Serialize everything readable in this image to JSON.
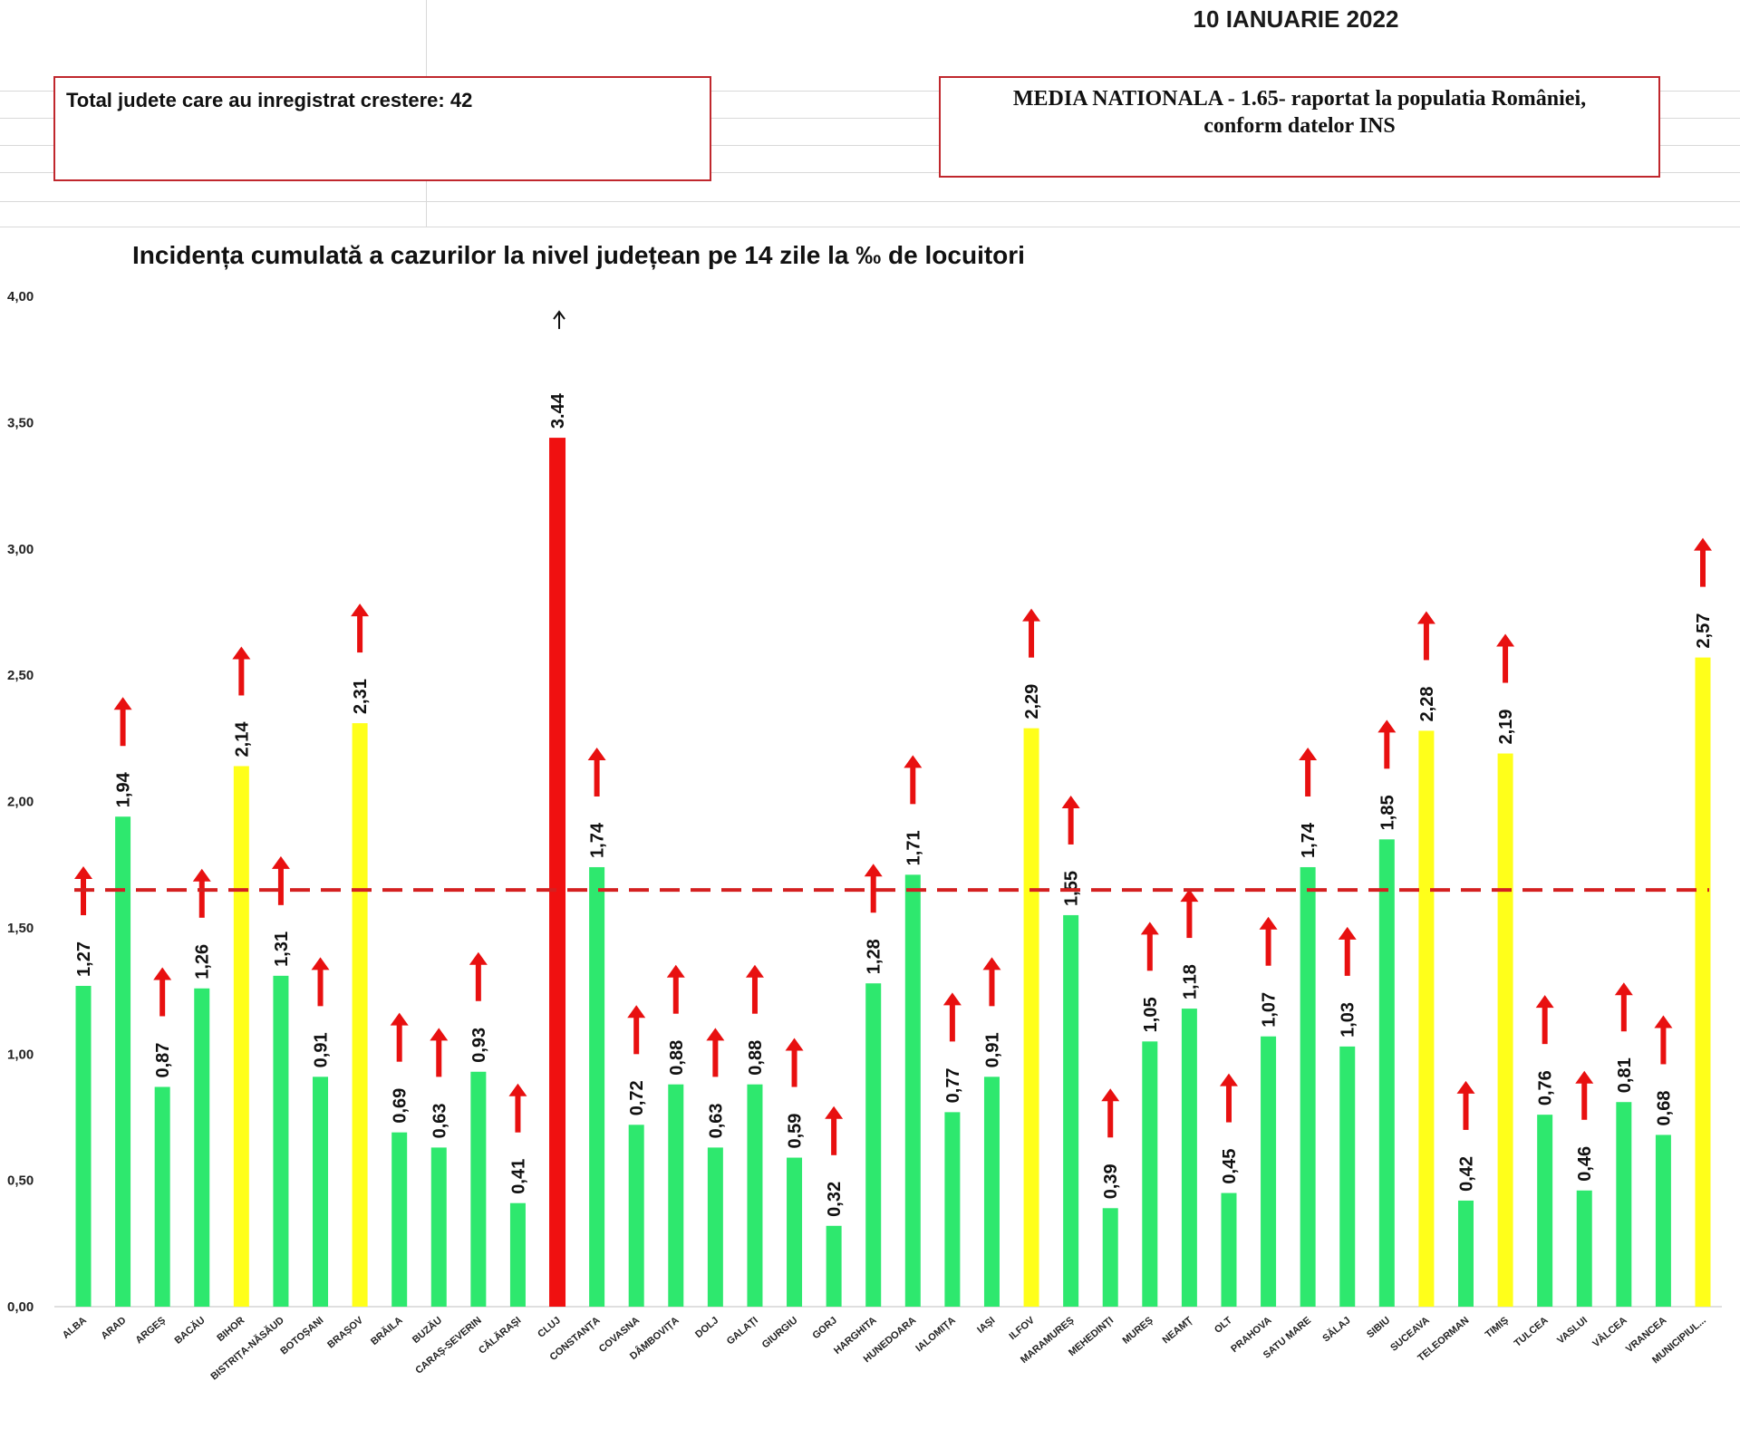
{
  "header": {
    "date": "10 IANUARIE 2022",
    "box_left_text": "Total judete care au inregistrat crestere: 42",
    "box_right_line1": "MEDIA NATIONALA - 1.65-  raportat la populatia României,",
    "box_right_line2": "conform datelor INS"
  },
  "chart_data": {
    "type": "bar",
    "title": "Incidența cumulată a cazurilor la nivel județean pe 14 zile la ‰ de locuitori",
    "xlabel": "",
    "ylabel": "",
    "ylim": [
      0,
      4
    ],
    "yticks": [
      "0,00",
      "0,50",
      "1,00",
      "1,50",
      "2,00",
      "2,50",
      "3,00",
      "3,50",
      "4,00"
    ],
    "reference_line": {
      "value": 1.65,
      "style": "dashed",
      "color": "#d42020"
    },
    "trend_arrows": "up (increase) above every bar",
    "colors": {
      "green": "#2ee86e",
      "yellow": "#ffff1a",
      "red": "#f01010",
      "arrow": "#e81010"
    },
    "categories": [
      "ALBA",
      "ARAD",
      "ARGEȘ",
      "BACĂU",
      "BIHOR",
      "BISTRIȚA-NĂSĂUD",
      "BOTOȘANI",
      "BRAȘOV",
      "BRĂILA",
      "BUZĂU",
      "CARAȘ-SEVERIN",
      "CĂLĂRAȘI",
      "CLUJ",
      "CONSTANȚA",
      "COVASNA",
      "DÂMBOVIȚA",
      "DOLJ",
      "GALAȚI",
      "GIURGIU",
      "GORJ",
      "HARGHITA",
      "HUNEDOARA",
      "IALOMIȚA",
      "IAȘI",
      "ILFOV",
      "MARAMUREȘ",
      "MEHEDINȚI",
      "MUREȘ",
      "NEAMȚ",
      "OLT",
      "PRAHOVA",
      "SATU MARE",
      "SĂLAJ",
      "SIBIU",
      "SUCEAVA",
      "TELEORMAN",
      "TIMIȘ",
      "TULCEA",
      "VASLUI",
      "VÂLCEA",
      "VRANCEA",
      "MUNICIPIUL..."
    ],
    "values": [
      1.27,
      1.94,
      0.87,
      1.26,
      2.14,
      1.31,
      0.91,
      2.31,
      0.69,
      0.63,
      0.93,
      0.41,
      3.44,
      1.74,
      0.72,
      0.88,
      0.63,
      0.88,
      0.59,
      0.32,
      1.28,
      1.71,
      0.77,
      0.91,
      2.29,
      1.55,
      0.39,
      1.05,
      1.18,
      0.45,
      1.07,
      1.74,
      1.03,
      1.85,
      2.28,
      0.42,
      2.19,
      0.76,
      0.46,
      0.81,
      0.68,
      2.57
    ],
    "labels": [
      "1,27",
      "1,94",
      "0,87",
      "1,26",
      "2,14",
      "1,31",
      "0,91",
      "2,31",
      "0,69",
      "0,63",
      "0,93",
      "0,41",
      "3.44",
      "1,74",
      "0,72",
      "0,88",
      "0,63",
      "0,88",
      "0,59",
      "0,32",
      "1,28",
      "1,71",
      "0,77",
      "0,91",
      "2,29",
      "1,55",
      "0,39",
      "1,05",
      "1,18",
      "0,45",
      "1,07",
      "1,74",
      "1,03",
      "1,85",
      "2,28",
      "0,42",
      "2,19",
      "0,76",
      "0,46",
      "0,81",
      "0,68",
      "2,57"
    ],
    "bar_colors": [
      "green",
      "green",
      "green",
      "green",
      "yellow",
      "green",
      "green",
      "yellow",
      "green",
      "green",
      "green",
      "green",
      "red",
      "green",
      "green",
      "green",
      "green",
      "green",
      "green",
      "green",
      "green",
      "green",
      "green",
      "green",
      "yellow",
      "green",
      "green",
      "green",
      "green",
      "green",
      "green",
      "green",
      "green",
      "green",
      "yellow",
      "green",
      "yellow",
      "green",
      "green",
      "green",
      "green",
      "yellow"
    ]
  }
}
